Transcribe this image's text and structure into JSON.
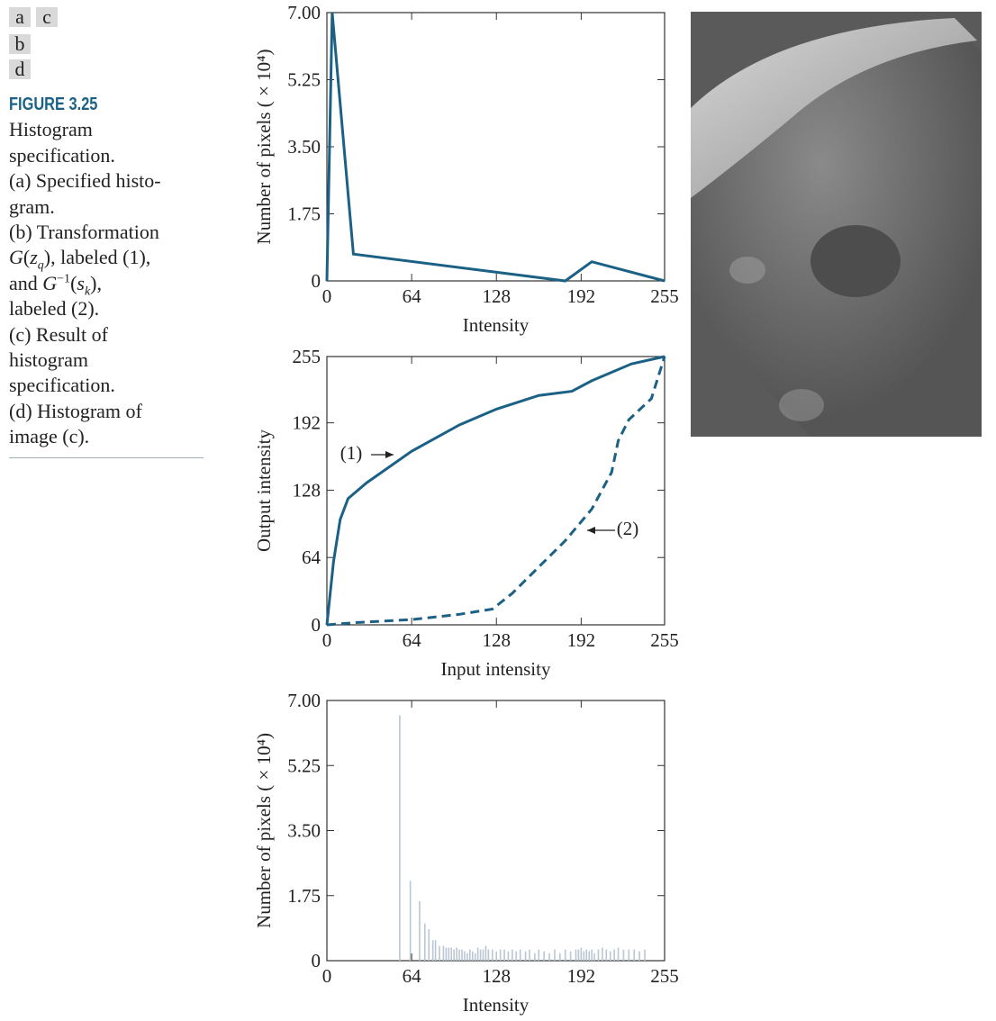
{
  "panel_labels": [
    "a",
    "c",
    "b",
    "d"
  ],
  "caption": {
    "title": "FIGURE 3.25",
    "lines": [
      [
        "Histogram"
      ],
      [
        "specification."
      ],
      [
        "(a) Specified histo-"
      ],
      [
        "gram."
      ],
      [
        "(b) Transformation"
      ],
      [
        {
          "text": "G",
          "style": "italic"
        },
        "(",
        {
          "text": "z",
          "style": "italic"
        },
        {
          "text": "q",
          "style": "italic-sub"
        },
        "), labeled (1),"
      ],
      [
        "and ",
        {
          "text": "G",
          "style": "italic"
        },
        {
          "text": "−1",
          "style": "sup"
        },
        "(",
        {
          "text": "s",
          "style": "italic"
        },
        {
          "text": "k",
          "style": "italic-sub"
        },
        "),"
      ],
      [
        "labeled (2)."
      ],
      [
        "(c) Result of"
      ],
      [
        "histogram"
      ],
      [
        "specification."
      ],
      [
        "(d) Histogram of"
      ],
      [
        "image (c)."
      ]
    ]
  },
  "chart_data": [
    {
      "type": "line",
      "xlabel": "Intensity",
      "ylabel": "Number of pixels ( × 10⁴)",
      "xlim": [
        0,
        255
      ],
      "xticks": [
        0,
        64,
        128,
        192,
        255
      ],
      "ylim": [
        0,
        7
      ],
      "yticks": [
        0,
        {
          "value": 1.75,
          "label": "1.75"
        },
        {
          "value": 3.5,
          "label": "3.50"
        },
        {
          "value": 5.25,
          "label": "5.25"
        },
        {
          "value": 7,
          "label": "7.00"
        }
      ],
      "series": [
        {
          "color": "#1b6186",
          "dashed": false,
          "x": [
            0,
            4,
            20,
            180,
            200,
            255
          ],
          "values": [
            0,
            7,
            0.7,
            0,
            0.5,
            0
          ]
        }
      ]
    },
    {
      "type": "line",
      "xlabel": "Input intensity",
      "ylabel": "Output intensity",
      "xlim": [
        0,
        255
      ],
      "xticks": [
        0,
        64,
        128,
        192,
        255
      ],
      "ylim": [
        0,
        255
      ],
      "yticks": [
        0,
        64,
        128,
        192,
        255
      ],
      "series": [
        {
          "name": "(1)",
          "color": "#1b6186",
          "dashed": false,
          "x": [
            0,
            5,
            10,
            16,
            30,
            64,
            100,
            128,
            160,
            185,
            200,
            230,
            255
          ],
          "values": [
            0,
            60,
            100,
            120,
            135,
            165,
            190,
            205,
            218,
            222,
            232,
            248,
            255
          ]
        },
        {
          "name": "(2)",
          "color": "#1b6186",
          "dashed": true,
          "x": [
            0,
            20,
            64,
            100,
            125,
            140,
            160,
            180,
            200,
            215,
            220,
            228,
            245,
            255
          ],
          "values": [
            0,
            2,
            5,
            10,
            15,
            30,
            55,
            80,
            110,
            145,
            175,
            195,
            215,
            255
          ]
        }
      ]
    },
    {
      "type": "bar",
      "xlabel": "Intensity",
      "ylabel": "Number of pixels ( × 10⁴)",
      "color": "#b9c6d3",
      "xlim": [
        0,
        255
      ],
      "xticks": [
        0,
        64,
        128,
        192,
        255
      ],
      "ylim": [
        0,
        7
      ],
      "yticks": [
        0,
        {
          "value": 1.75,
          "label": "1.75"
        },
        {
          "value": 3.5,
          "label": "3.50"
        },
        {
          "value": 5.25,
          "label": "5.25"
        },
        {
          "value": 7,
          "label": "7.00"
        }
      ],
      "x": [
        55,
        63,
        70,
        74,
        77,
        80,
        82,
        85,
        88,
        90,
        92,
        94,
        96,
        98,
        100,
        102,
        104,
        106,
        108,
        110,
        112,
        114,
        116,
        118,
        120,
        122,
        125,
        128,
        131,
        134,
        137,
        140,
        143,
        146,
        150,
        153,
        157,
        160,
        164,
        168,
        172,
        176,
        180,
        184,
        188,
        190,
        192,
        194,
        196,
        198,
        200,
        202,
        205,
        208,
        211,
        214,
        217,
        220,
        224,
        228,
        232,
        236,
        240
      ],
      "values": [
        6.6,
        2.15,
        1.6,
        1.0,
        0.85,
        0.55,
        0.55,
        0.4,
        0.4,
        0.35,
        0.35,
        0.35,
        0.3,
        0.35,
        0.3,
        0.3,
        0.25,
        0.2,
        0.3,
        0.25,
        0.2,
        0.35,
        0.3,
        0.3,
        0.4,
        0.3,
        0.3,
        0.25,
        0.3,
        0.3,
        0.25,
        0.3,
        0.25,
        0.3,
        0.25,
        0.3,
        0.2,
        0.3,
        0.25,
        0.2,
        0.3,
        0.2,
        0.3,
        0.25,
        0.3,
        0.3,
        0.35,
        0.25,
        0.3,
        0.25,
        0.3,
        0.2,
        0.3,
        0.35,
        0.3,
        0.25,
        0.3,
        0.35,
        0.3,
        0.3,
        0.3,
        0.25,
        0.3
      ]
    }
  ]
}
